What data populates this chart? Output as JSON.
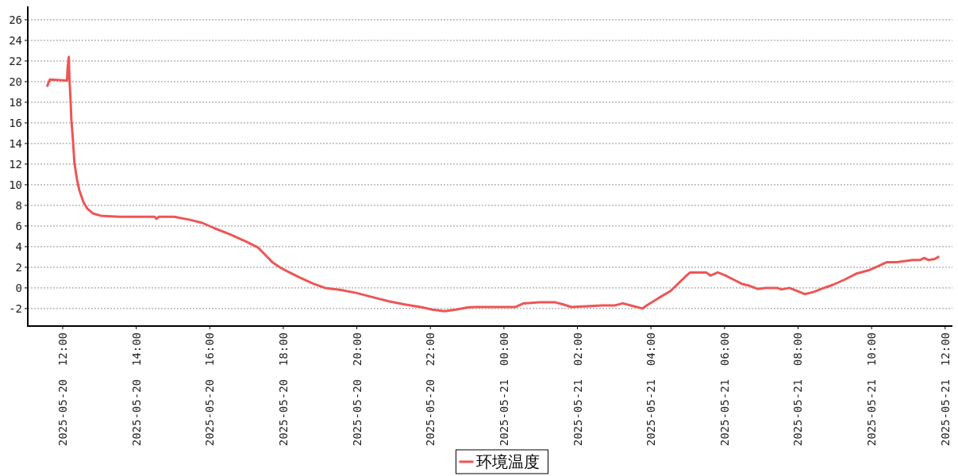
{
  "chart_data": {
    "type": "line",
    "series": [
      {
        "name": "环境温度",
        "color": "#ee5555",
        "x": [
          "2025-05-20T11:35",
          "2025-05-20T11:39",
          "2025-05-20T12:07",
          "2025-05-20T12:08",
          "2025-05-20T12:10",
          "2025-05-20T12:11",
          "2025-05-20T12:13",
          "2025-05-20T12:14",
          "2025-05-20T12:17",
          "2025-05-20T12:19",
          "2025-05-20T12:23",
          "2025-05-20T12:27",
          "2025-05-20T12:34",
          "2025-05-20T12:40",
          "2025-05-20T12:50",
          "2025-05-20T13:02",
          "2025-05-20T13:32",
          "2025-05-20T14:30",
          "2025-05-20T14:33",
          "2025-05-20T14:37",
          "2025-05-20T15:02",
          "2025-05-20T15:28",
          "2025-05-20T15:48",
          "2025-05-20T16:07",
          "2025-05-20T16:33",
          "2025-05-20T16:59",
          "2025-05-20T17:19",
          "2025-05-20T17:29",
          "2025-05-20T17:42",
          "2025-05-20T17:57",
          "2025-05-20T18:10",
          "2025-05-20T18:27",
          "2025-05-20T18:49",
          "2025-05-20T19:08",
          "2025-05-20T19:34",
          "2025-05-20T20:00",
          "2025-05-20T20:26",
          "2025-05-20T20:52",
          "2025-05-20T21:18",
          "2025-05-20T21:44",
          "2025-05-20T22:03",
          "2025-05-20T22:23",
          "2025-05-20T22:42",
          "2025-05-20T23:01",
          "2025-05-20T23:14",
          "2025-05-21T00:19",
          "2025-05-21T00:32",
          "2025-05-21T00:58",
          "2025-05-21T01:24",
          "2025-05-21T01:37",
          "2025-05-21T01:50",
          "2025-05-21T02:41",
          "2025-05-21T03:01",
          "2025-05-21T03:14",
          "2025-05-21T03:27",
          "2025-05-21T03:40",
          "2025-05-21T03:46",
          "2025-05-21T03:53",
          "2025-05-21T04:12",
          "2025-05-21T04:32",
          "2025-05-21T04:44",
          "2025-05-21T04:58",
          "2025-05-21T05:04",
          "2025-05-21T05:30",
          "2025-05-21T05:37",
          "2025-05-21T05:49",
          "2025-05-21T06:02",
          "2025-05-21T06:15",
          "2025-05-21T06:28",
          "2025-05-21T06:41",
          "2025-05-21T06:54",
          "2025-05-21T07:07",
          "2025-05-21T07:26",
          "2025-05-21T07:33",
          "2025-05-21T07:46",
          "2025-05-21T07:59",
          "2025-05-21T08:11",
          "2025-05-21T08:25",
          "2025-05-21T08:38",
          "2025-05-21T08:57",
          "2025-05-21T09:16",
          "2025-05-21T09:36",
          "2025-05-21T09:55",
          "2025-05-21T10:14",
          "2025-05-21T10:25",
          "2025-05-21T10:41",
          "2025-05-21T11:07",
          "2025-05-21T11:19",
          "2025-05-21T11:26",
          "2025-05-21T11:33",
          "2025-05-21T11:43",
          "2025-05-21T11:49"
        ],
        "values": [
          19.6,
          20.2,
          20.1,
          21.3,
          22.4,
          20.3,
          18.0,
          16.4,
          14.1,
          12.2,
          10.6,
          9.5,
          8.3,
          7.7,
          7.2,
          7.0,
          6.9,
          6.9,
          6.7,
          6.9,
          6.9,
          6.6,
          6.3,
          5.8,
          5.2,
          4.5,
          3.9,
          3.3,
          2.5,
          1.9,
          1.5,
          1.0,
          0.4,
          0.0,
          -0.2,
          -0.5,
          -0.9,
          -1.3,
          -1.6,
          -1.85,
          -2.1,
          -2.25,
          -2.1,
          -1.9,
          -1.85,
          -1.85,
          -1.5,
          -1.4,
          -1.4,
          -1.6,
          -1.85,
          -1.7,
          -1.7,
          -1.5,
          -1.7,
          -1.9,
          -2.0,
          -1.7,
          -1.0,
          -0.3,
          0.4,
          1.2,
          1.5,
          1.5,
          1.2,
          1.5,
          1.2,
          0.8,
          0.4,
          0.2,
          -0.1,
          0.0,
          0.0,
          -0.15,
          0.0,
          -0.3,
          -0.6,
          -0.4,
          -0.1,
          0.3,
          0.8,
          1.4,
          1.7,
          2.2,
          2.5,
          2.5,
          2.7,
          2.7,
          2.9,
          2.7,
          2.8,
          3.0
        ]
      }
    ],
    "xlim": [
      "2025-05-20T11:03",
      "2025-05-21T12:12"
    ],
    "xticks": [
      {
        "value": "2025-05-20T12:00",
        "label": "2025-05-20  12:00"
      },
      {
        "value": "2025-05-20T14:00",
        "label": "2025-05-20  14:00"
      },
      {
        "value": "2025-05-20T16:00",
        "label": "2025-05-20  16:00"
      },
      {
        "value": "2025-05-20T18:00",
        "label": "2025-05-20  18:00"
      },
      {
        "value": "2025-05-20T20:00",
        "label": "2025-05-20  20:00"
      },
      {
        "value": "2025-05-20T22:00",
        "label": "2025-05-20  22:00"
      },
      {
        "value": "2025-05-21T00:00",
        "label": "2025-05-21  00:00"
      },
      {
        "value": "2025-05-21T02:00",
        "label": "2025-05-21  02:00"
      },
      {
        "value": "2025-05-21T04:00",
        "label": "2025-05-21  04:00"
      },
      {
        "value": "2025-05-21T06:00",
        "label": "2025-05-21  06:00"
      },
      {
        "value": "2025-05-21T08:00",
        "label": "2025-05-21  08:00"
      },
      {
        "value": "2025-05-21T10:00",
        "label": "2025-05-21  10:00"
      },
      {
        "value": "2025-05-21T12:00",
        "label": "2025-05-21  12:00"
      }
    ],
    "ylim": [
      -3.7,
      27.3
    ],
    "yticks": [
      -2,
      0,
      2,
      4,
      6,
      8,
      10,
      12,
      14,
      16,
      18,
      20,
      22,
      24,
      26
    ],
    "grid": "y",
    "legend": "bottom",
    "marker": "none",
    "line_style": "solid"
  }
}
